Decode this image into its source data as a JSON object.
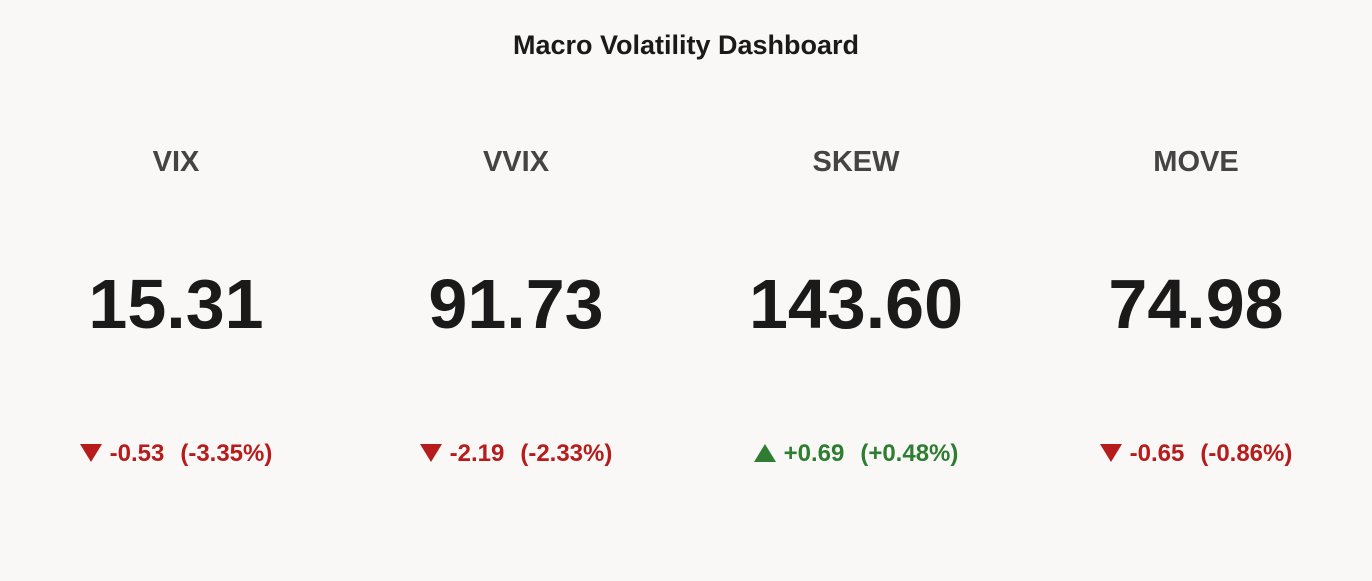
{
  "title": "Macro Volatility Dashboard",
  "colors": {
    "increasing": "#2e7d32",
    "decreasing": "#b71c1c"
  },
  "indicators": [
    {
      "label": "VIX",
      "value": "15.31",
      "delta": "-0.53",
      "delta_pct": "(-3.35%)",
      "direction": "decreasing"
    },
    {
      "label": "VVIX",
      "value": "91.73",
      "delta": "-2.19",
      "delta_pct": "(-2.33%)",
      "direction": "decreasing"
    },
    {
      "label": "SKEW",
      "value": "143.60",
      "delta": "+0.69",
      "delta_pct": "(+0.48%)",
      "direction": "increasing"
    },
    {
      "label": "MOVE",
      "value": "74.98",
      "delta": "-0.65",
      "delta_pct": "(-0.86%)",
      "direction": "decreasing"
    }
  ]
}
